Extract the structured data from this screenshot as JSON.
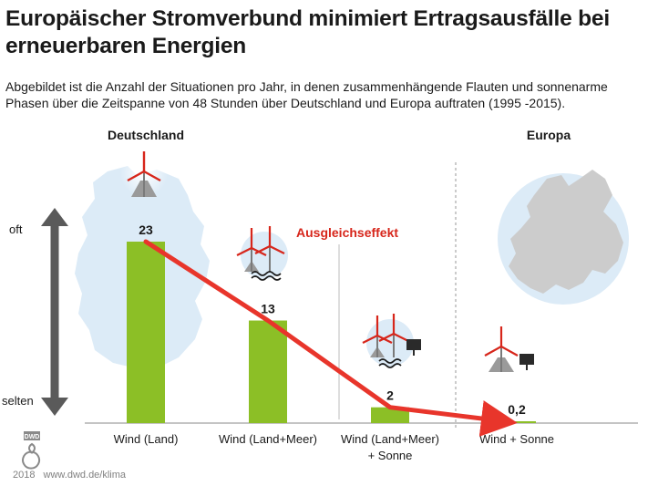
{
  "header": {
    "title": "Europäischer Stromverbund minimiert Ertragsausfälle bei erneuerbaren Energien",
    "subtitle": "Abgebildet ist die Anzahl der Situationen pro Jahr, in denen zusammenhängende Flauten und sonnenarme Phasen über die Zeitspanne von 48 Stunden über Deutschland und Europa auftraten (1995 -2015)."
  },
  "sections": {
    "germany": "Deutschland",
    "europe": "Europa"
  },
  "axis": {
    "high": "oft",
    "low": "selten"
  },
  "annotation": "Ausgleichseffekt",
  "colors": {
    "bar": "#8cbf26",
    "arrow": "#e8352b",
    "map": "#dcebf7",
    "europe_land": "#cccccc",
    "annotation": "#d7261b"
  },
  "chart_data": {
    "type": "bar",
    "title": "",
    "categories": [
      "Wind (Land)",
      "Wind (Land+Meer)",
      "Wind (Land+Meer)\n+ Sonne",
      "Wind + Sonne"
    ],
    "values": [
      23,
      13,
      2,
      0.2
    ],
    "value_labels": [
      "23",
      "13",
      "2",
      "0,2"
    ],
    "ylim": [
      0,
      23
    ],
    "grid": false,
    "overlay": "red arrow connecting bar tops"
  },
  "footer": {
    "logo": "DWD",
    "year": "2018",
    "url": "www.dwd.de/klima"
  }
}
